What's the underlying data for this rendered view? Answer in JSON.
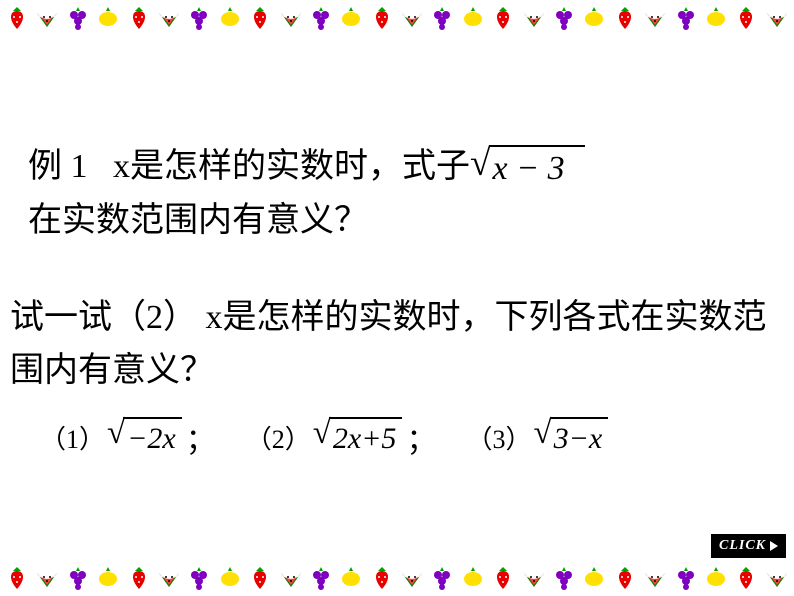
{
  "border_fruits": [
    "strawberry",
    "watermelon",
    "grape",
    "lemon",
    "strawberry",
    "watermelon",
    "grape",
    "lemon",
    "strawberry",
    "watermelon",
    "grape",
    "lemon",
    "strawberry",
    "watermelon",
    "grape",
    "lemon",
    "strawberry",
    "watermelon",
    "grape",
    "lemon",
    "strawberry",
    "watermelon",
    "grape",
    "lemon",
    "strawberry",
    "watermelon"
  ],
  "fruit_colors": {
    "strawberry": {
      "body": "#e80000",
      "leaf": "#00a000"
    },
    "watermelon": {
      "body": "#ff4040",
      "rind": "#008000"
    },
    "grape": {
      "body": "#8000c0",
      "leaf": "#00a000"
    },
    "lemon": {
      "body": "#ffe000",
      "leaf": "#00a000"
    }
  },
  "example": {
    "label": "例 1",
    "text_before_sqrt": "x是怎样的实数时，式子 ",
    "sqrt_expr": "x − 3",
    "text_after": "在实数范围内有意义？"
  },
  "tryit": {
    "label": "试一试（2）",
    "text": " x是怎样的实数时，下列各式在实数范围内有意义？"
  },
  "formulas": [
    {
      "num": "（1）",
      "expr": "−2x",
      "trail": "；"
    },
    {
      "num": "（2）",
      "expr": "2x+5",
      "trail": "；"
    },
    {
      "num": "（3）",
      "expr": "3−x",
      "trail": ""
    }
  ],
  "click_label": "CLICK",
  "styles": {
    "page_bg": "#ffffff",
    "text_color": "#000000",
    "body_fontsize": 34,
    "formula_fontsize": 30,
    "numlabel_fontsize": 26,
    "click_bg": "#000000",
    "click_fg": "#ffffff"
  }
}
